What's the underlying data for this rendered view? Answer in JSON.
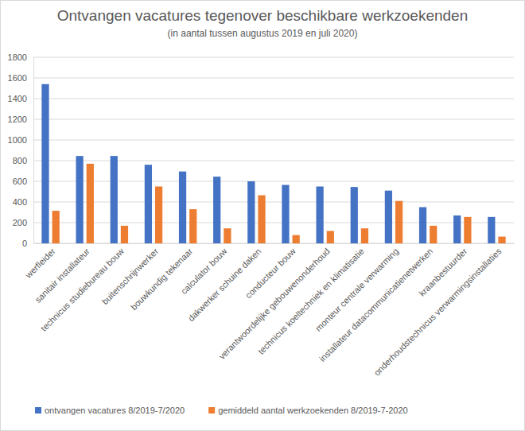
{
  "chart_data": {
    "type": "bar",
    "title": "Ontvangen vacatures tegenover beschikbare werkzoekenden",
    "subtitle": "(in aantal tussen augustus 2019 en juli 2020)",
    "categories": [
      "werfleider",
      "sanitair installateur",
      "technicus studiebureau bouw",
      "buitenschrijnwerker",
      "bouwkundig tekenaar",
      "calculator bouw",
      "dakwerker schuine daken",
      "conducteur bouw",
      "verantwoordelijke gebouwenonderhoud",
      "technicus koeltechniek en klimatisatie",
      "monteur centrale verwarming",
      "installateur datacommunicatienetwerken",
      "kraanbestuurder",
      "onderhoudstechnicus verwarmingsinstallaties"
    ],
    "series": [
      {
        "name": "ontvangen vacatures 8/2019-7/2020",
        "color": "#4472c4",
        "values": [
          1540,
          845,
          845,
          760,
          695,
          645,
          600,
          565,
          550,
          545,
          510,
          350,
          270,
          255
        ]
      },
      {
        "name": "gemiddeld aantal werkzoekenden 8/2019-7-2020",
        "color": "#ed7d31",
        "values": [
          315,
          770,
          170,
          550,
          330,
          145,
          465,
          80,
          120,
          145,
          410,
          170,
          255,
          65
        ]
      }
    ],
    "ylim": [
      0,
      1800
    ],
    "yticks": [
      0,
      200,
      400,
      600,
      800,
      1000,
      1200,
      1400,
      1600,
      1800
    ],
    "grid": true,
    "legend": "bottom"
  }
}
